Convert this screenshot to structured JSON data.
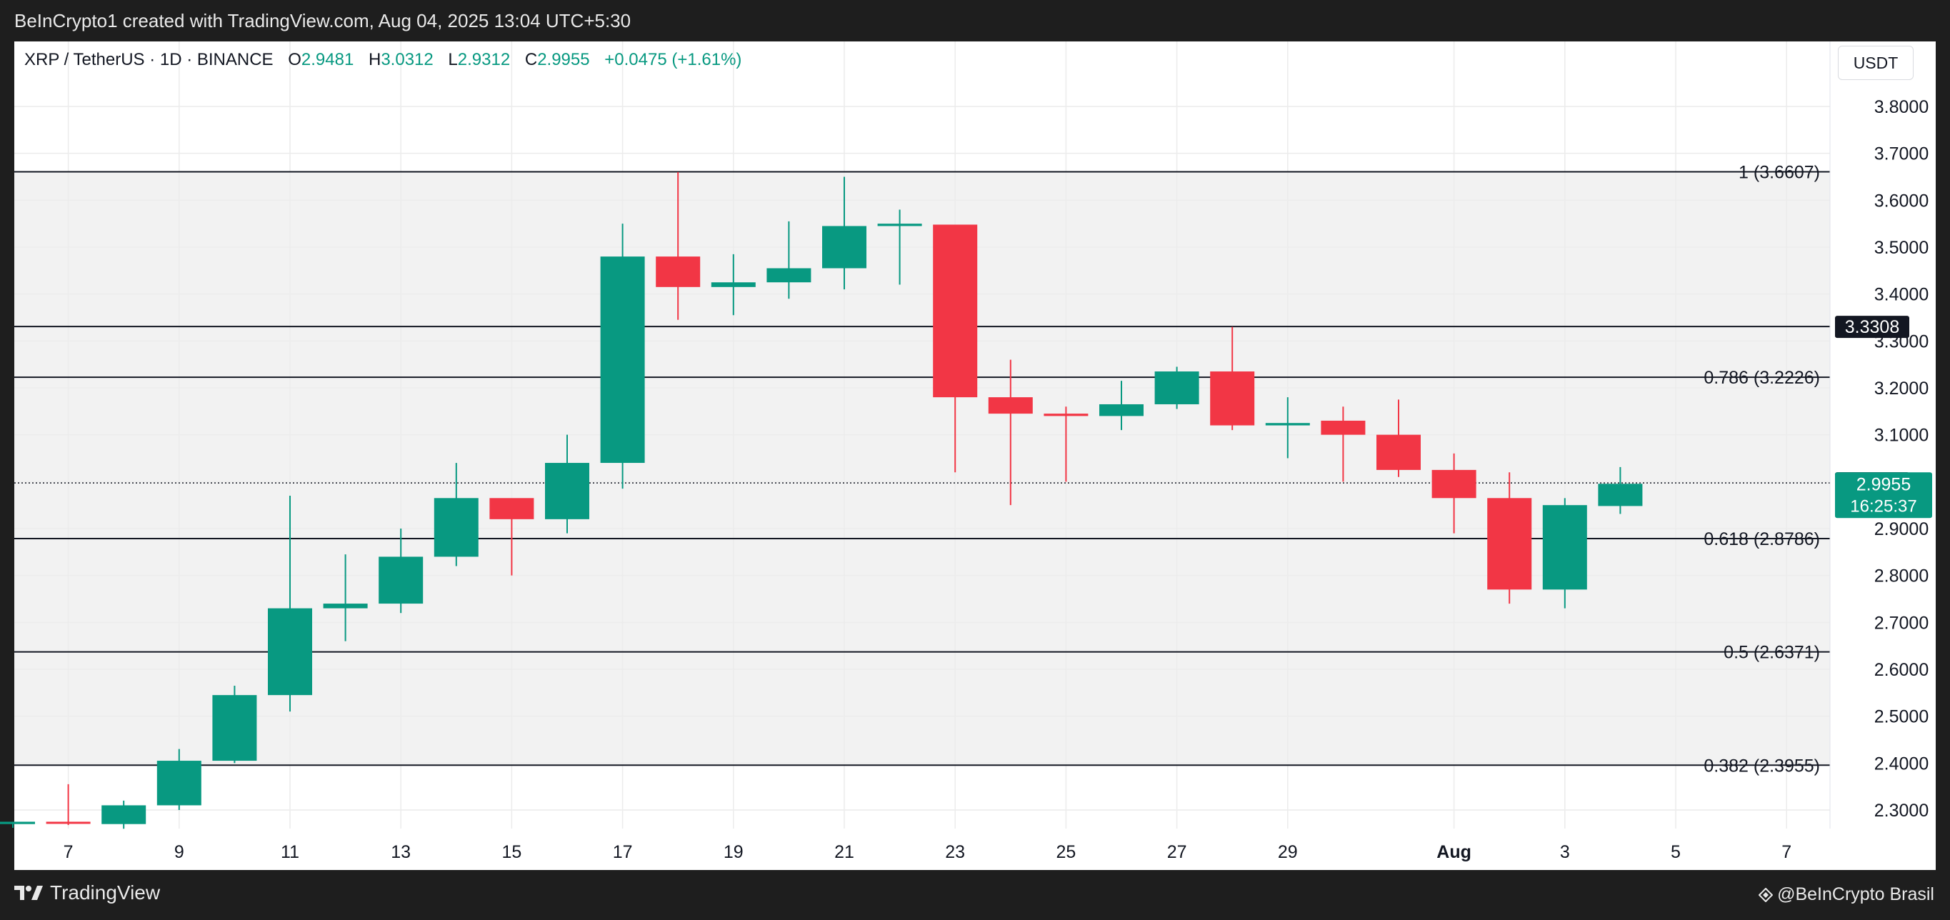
{
  "header": {
    "credit_line": "BeInCrypto1 created with TradingView.com, Aug 04, 2025 13:04 UTC+5:30"
  },
  "legend": {
    "symbol": "XRP / TetherUS · 1D · BINANCE",
    "o_label": "O",
    "o": "2.9481",
    "h_label": "H",
    "h": "3.0312",
    "l_label": "L",
    "l": "2.9312",
    "c_label": "C",
    "c": "2.9955",
    "change": "+0.0475 (+1.61%)"
  },
  "currency_button": "USDT",
  "footer": {
    "brand": "TradingView",
    "credit": "@BeInCrypto Brasil"
  },
  "colors": {
    "up": "#089981",
    "down": "#f23645",
    "band": "#f2f2f2",
    "grid": "#ececec"
  },
  "chart_data": {
    "type": "candlestick",
    "ylim": [
      2.26,
      3.86
    ],
    "y_ticks": [
      "3.8000",
      "3.7000",
      "3.6000",
      "3.5000",
      "3.4000",
      "3.3000",
      "3.2000",
      "3.1000",
      "3.0000",
      "2.9000",
      "2.8000",
      "2.7000",
      "2.6000",
      "2.5000",
      "2.4000",
      "2.3000"
    ],
    "x_ticks": [
      "7",
      "9",
      "11",
      "13",
      "15",
      "17",
      "19",
      "21",
      "23",
      "25",
      "27",
      "29",
      "Aug",
      "3",
      "5",
      "7"
    ],
    "candles": [
      {
        "date": "2025-07-06",
        "o": 2.27,
        "h": 2.275,
        "l": 2.262,
        "c": 2.275
      },
      {
        "date": "2025-07-07",
        "o": 2.275,
        "h": 2.355,
        "l": 2.268,
        "c": 2.272
      },
      {
        "date": "2025-07-08",
        "o": 2.27,
        "h": 2.32,
        "l": 2.26,
        "c": 2.31
      },
      {
        "date": "2025-07-09",
        "o": 2.31,
        "h": 2.43,
        "l": 2.3,
        "c": 2.405
      },
      {
        "date": "2025-07-10",
        "o": 2.405,
        "h": 2.565,
        "l": 2.4,
        "c": 2.545
      },
      {
        "date": "2025-07-11",
        "o": 2.545,
        "h": 2.97,
        "l": 2.51,
        "c": 2.73
      },
      {
        "date": "2025-07-12",
        "o": 2.73,
        "h": 2.845,
        "l": 2.66,
        "c": 2.74
      },
      {
        "date": "2025-07-13",
        "o": 2.74,
        "h": 2.9,
        "l": 2.72,
        "c": 2.84
      },
      {
        "date": "2025-07-14",
        "o": 2.84,
        "h": 3.04,
        "l": 2.82,
        "c": 2.965
      },
      {
        "date": "2025-07-15",
        "o": 2.965,
        "h": 2.96,
        "l": 2.8,
        "c": 2.92
      },
      {
        "date": "2025-07-16",
        "o": 2.92,
        "h": 3.1,
        "l": 2.89,
        "c": 3.04
      },
      {
        "date": "2025-07-17",
        "o": 3.04,
        "h": 3.55,
        "l": 2.985,
        "c": 3.48
      },
      {
        "date": "2025-07-18",
        "o": 3.48,
        "h": 3.66,
        "l": 3.345,
        "c": 3.415
      },
      {
        "date": "2025-07-19",
        "o": 3.415,
        "h": 3.485,
        "l": 3.355,
        "c": 3.425
      },
      {
        "date": "2025-07-20",
        "o": 3.425,
        "h": 3.555,
        "l": 3.39,
        "c": 3.455
      },
      {
        "date": "2025-07-21",
        "o": 3.455,
        "h": 3.65,
        "l": 3.41,
        "c": 3.545
      },
      {
        "date": "2025-07-22",
        "o": 3.545,
        "h": 3.58,
        "l": 3.42,
        "c": 3.55
      },
      {
        "date": "2025-07-23",
        "o": 3.548,
        "h": 3.546,
        "l": 3.02,
        "c": 3.18
      },
      {
        "date": "2025-07-24",
        "o": 3.18,
        "h": 3.26,
        "l": 2.95,
        "c": 3.145
      },
      {
        "date": "2025-07-25",
        "o": 3.145,
        "h": 3.16,
        "l": 3.0,
        "c": 3.14
      },
      {
        "date": "2025-07-26",
        "o": 3.14,
        "h": 3.215,
        "l": 3.11,
        "c": 3.165
      },
      {
        "date": "2025-07-27",
        "o": 3.165,
        "h": 3.245,
        "l": 3.155,
        "c": 3.235
      },
      {
        "date": "2025-07-28",
        "o": 3.235,
        "h": 3.33,
        "l": 3.11,
        "c": 3.12
      },
      {
        "date": "2025-07-29",
        "o": 3.12,
        "h": 3.18,
        "l": 3.05,
        "c": 3.125
      },
      {
        "date": "2025-07-30",
        "o": 3.13,
        "h": 3.16,
        "l": 3.0,
        "c": 3.1
      },
      {
        "date": "2025-07-31",
        "o": 3.1,
        "h": 3.175,
        "l": 3.01,
        "c": 3.025
      },
      {
        "date": "2025-08-01",
        "o": 3.025,
        "h": 3.06,
        "l": 2.89,
        "c": 2.965
      },
      {
        "date": "2025-08-02",
        "o": 2.965,
        "h": 3.02,
        "l": 2.74,
        "c": 2.77
      },
      {
        "date": "2025-08-03",
        "o": 2.77,
        "h": 2.965,
        "l": 2.73,
        "c": 2.95
      },
      {
        "date": "2025-08-04",
        "o": 2.9481,
        "h": 3.0312,
        "l": 2.9312,
        "c": 2.9955
      }
    ],
    "fib_levels": [
      {
        "label": "1 (3.6607)",
        "value": 3.6607
      },
      {
        "label": "0.786 (3.2226)",
        "value": 3.2226
      },
      {
        "label": "0.618 (2.8786)",
        "value": 2.8786
      },
      {
        "label": "0.5 (2.6371)",
        "value": 2.6371
      },
      {
        "label": "0.382 (2.3955)",
        "value": 2.3955
      }
    ],
    "marked_levels": [
      {
        "label": "3.3308",
        "value": 3.3308
      },
      {
        "label": "2.9973",
        "value": 2.9973
      }
    ],
    "last_price": {
      "label": "2.9955",
      "value": 2.9955,
      "countdown": "16:25:37"
    }
  }
}
